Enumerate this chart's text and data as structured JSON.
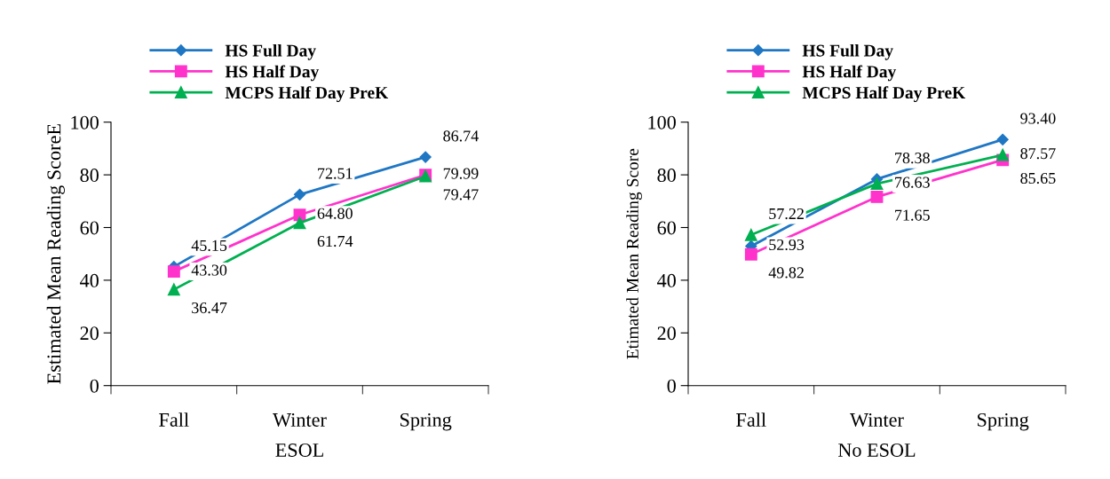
{
  "chart_data": [
    {
      "type": "line",
      "xlabel": "ESOL",
      "ylabel": "Estimated Mean Reading ScoreE",
      "categories": [
        "Fall",
        "Winter",
        "Spring"
      ],
      "ylim": [
        0,
        100
      ],
      "yticks": [
        0,
        20,
        40,
        60,
        80,
        100
      ],
      "grid": false,
      "legend": "top",
      "series": [
        {
          "name": "HS Full Day",
          "color": "#1f77c4",
          "marker": "diamond",
          "values": [
            45.15,
            72.51,
            86.74
          ],
          "value_labels": [
            "45.15",
            "72.51",
            "86.74"
          ]
        },
        {
          "name": "HS Half Day",
          "color": "#ff33cc",
          "marker": "square",
          "values": [
            43.3,
            64.8,
            79.99
          ],
          "value_labels": [
            "43.30",
            "64.80",
            "79.99"
          ]
        },
        {
          "name": "MCPS Half Day PreK",
          "color": "#00b050",
          "marker": "triangle",
          "values": [
            36.47,
            61.74,
            79.47
          ],
          "value_labels": [
            "36.47",
            "61.74",
            "79.47"
          ]
        }
      ]
    },
    {
      "type": "line",
      "xlabel": "No ESOL",
      "ylabel": "Etimated Mean Reading Score",
      "categories": [
        "Fall",
        "Winter",
        "Spring"
      ],
      "ylim": [
        0,
        100
      ],
      "yticks": [
        0,
        20,
        40,
        60,
        80,
        100
      ],
      "grid": false,
      "legend": "top",
      "series": [
        {
          "name": "HS Full Day",
          "color": "#1f77c4",
          "marker": "diamond",
          "values": [
            52.93,
            78.38,
            93.4
          ],
          "value_labels": [
            "52.93",
            "78.38",
            "93.40"
          ]
        },
        {
          "name": "HS Half Day",
          "color": "#ff33cc",
          "marker": "square",
          "values": [
            49.82,
            71.65,
            85.65
          ],
          "value_labels": [
            "49.82",
            "71.65",
            "85.65"
          ]
        },
        {
          "name": "MCPS Half Day PreK",
          "color": "#00b050",
          "marker": "triangle",
          "values": [
            57.22,
            76.63,
            87.57
          ],
          "value_labels": [
            "57.22",
            "76.63",
            "87.57"
          ]
        }
      ]
    }
  ]
}
